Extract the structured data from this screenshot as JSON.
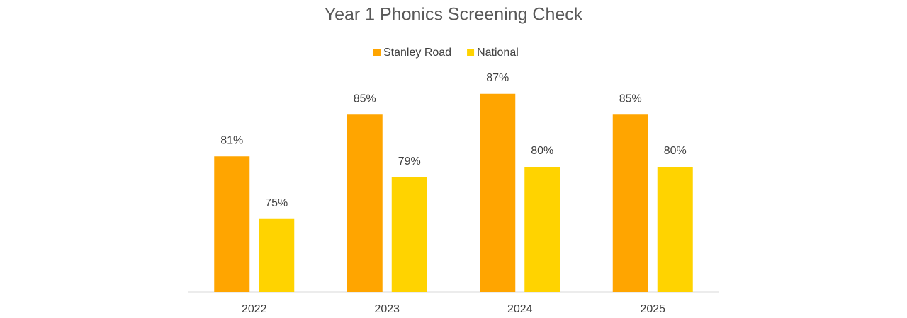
{
  "chart_data": {
    "type": "bar",
    "title": "Year 1 Phonics Screening Check",
    "categories": [
      "2022",
      "2023",
      "2024",
      "2025"
    ],
    "series": [
      {
        "name": "Stanley Road",
        "color": "#ffa500",
        "values": [
          81,
          85,
          87,
          85
        ],
        "value_labels": [
          "81%",
          "85%",
          "87%",
          "85%"
        ]
      },
      {
        "name": "National",
        "color": "#ffd300",
        "values": [
          75,
          79,
          80,
          80
        ],
        "value_labels": [
          "75%",
          "79%",
          "80%",
          "80%"
        ]
      }
    ],
    "ylim": [
      68,
      88
    ],
    "legend": "top",
    "grid": false
  }
}
